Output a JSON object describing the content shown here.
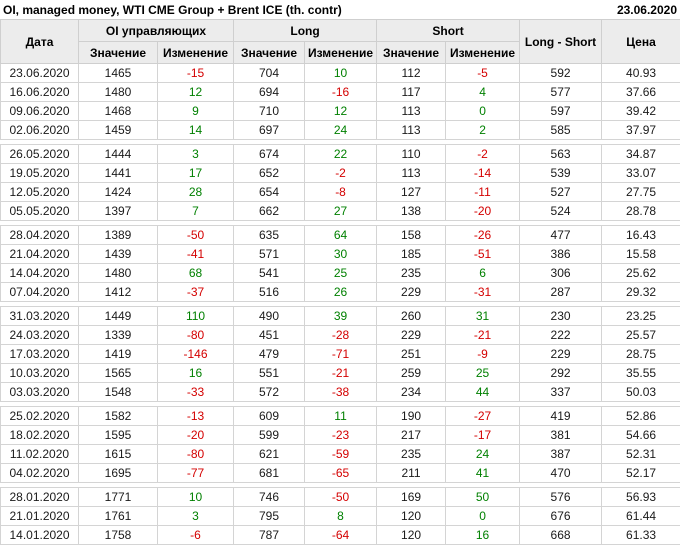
{
  "title": "OI, managed money, WTI CME Group + Brent ICE (th. contr)",
  "report_date": "23.06.2020",
  "colors": {
    "positive_change": "#008000",
    "negative_change": "#d40000",
    "header_background": "#ececec",
    "grid_border": "#d4d4d4"
  },
  "table": {
    "col_groups": [
      {
        "label": "Дата",
        "rowspan": 2
      },
      {
        "label": "OI управляющих",
        "colspan": 2
      },
      {
        "label": "Long",
        "colspan": 2
      },
      {
        "label": "Short",
        "colspan": 2
      },
      {
        "label": "Long - Short",
        "rowspan": 2
      },
      {
        "label": "Цена",
        "rowspan": 2
      }
    ],
    "sub_headers": [
      "Значение",
      "Изменение",
      "Значение",
      "Изменение",
      "Значение",
      "Изменение"
    ],
    "rows": [
      {
        "date": "23.06.2020",
        "oi": "1465",
        "oi_change": "-15",
        "long": "704",
        "long_change": "10",
        "short": "112",
        "short_change": "-5",
        "long_short": "592",
        "price": "40.93",
        "month_start": false
      },
      {
        "date": "16.06.2020",
        "oi": "1480",
        "oi_change": "12",
        "long": "694",
        "long_change": "-16",
        "short": "117",
        "short_change": "4",
        "long_short": "577",
        "price": "37.66",
        "month_start": false
      },
      {
        "date": "09.06.2020",
        "oi": "1468",
        "oi_change": "9",
        "long": "710",
        "long_change": "12",
        "short": "113",
        "short_change": "0",
        "long_short": "597",
        "price": "39.42",
        "month_start": false
      },
      {
        "date": "02.06.2020",
        "oi": "1459",
        "oi_change": "14",
        "long": "697",
        "long_change": "24",
        "short": "113",
        "short_change": "2",
        "long_short": "585",
        "price": "37.97",
        "month_start": false
      },
      {
        "date": "26.05.2020",
        "oi": "1444",
        "oi_change": "3",
        "long": "674",
        "long_change": "22",
        "short": "110",
        "short_change": "-2",
        "long_short": "563",
        "price": "34.87",
        "month_start": true
      },
      {
        "date": "19.05.2020",
        "oi": "1441",
        "oi_change": "17",
        "long": "652",
        "long_change": "-2",
        "short": "113",
        "short_change": "-14",
        "long_short": "539",
        "price": "33.07",
        "month_start": false
      },
      {
        "date": "12.05.2020",
        "oi": "1424",
        "oi_change": "28",
        "long": "654",
        "long_change": "-8",
        "short": "127",
        "short_change": "-11",
        "long_short": "527",
        "price": "27.75",
        "month_start": false
      },
      {
        "date": "05.05.2020",
        "oi": "1397",
        "oi_change": "7",
        "long": "662",
        "long_change": "27",
        "short": "138",
        "short_change": "-20",
        "long_short": "524",
        "price": "28.78",
        "month_start": false
      },
      {
        "date": "28.04.2020",
        "oi": "1389",
        "oi_change": "-50",
        "long": "635",
        "long_change": "64",
        "short": "158",
        "short_change": "-26",
        "long_short": "477",
        "price": "16.43",
        "month_start": true
      },
      {
        "date": "21.04.2020",
        "oi": "1439",
        "oi_change": "-41",
        "long": "571",
        "long_change": "30",
        "short": "185",
        "short_change": "-51",
        "long_short": "386",
        "price": "15.58",
        "month_start": false
      },
      {
        "date": "14.04.2020",
        "oi": "1480",
        "oi_change": "68",
        "long": "541",
        "long_change": "25",
        "short": "235",
        "short_change": "6",
        "long_short": "306",
        "price": "25.62",
        "month_start": false
      },
      {
        "date": "07.04.2020",
        "oi": "1412",
        "oi_change": "-37",
        "long": "516",
        "long_change": "26",
        "short": "229",
        "short_change": "-31",
        "long_short": "287",
        "price": "29.32",
        "month_start": false
      },
      {
        "date": "31.03.2020",
        "oi": "1449",
        "oi_change": "110",
        "long": "490",
        "long_change": "39",
        "short": "260",
        "short_change": "31",
        "long_short": "230",
        "price": "23.25",
        "month_start": true
      },
      {
        "date": "24.03.2020",
        "oi": "1339",
        "oi_change": "-80",
        "long": "451",
        "long_change": "-28",
        "short": "229",
        "short_change": "-21",
        "long_short": "222",
        "price": "25.57",
        "month_start": false
      },
      {
        "date": "17.03.2020",
        "oi": "1419",
        "oi_change": "-146",
        "long": "479",
        "long_change": "-71",
        "short": "251",
        "short_change": "-9",
        "long_short": "229",
        "price": "28.75",
        "month_start": false
      },
      {
        "date": "10.03.2020",
        "oi": "1565",
        "oi_change": "16",
        "long": "551",
        "long_change": "-21",
        "short": "259",
        "short_change": "25",
        "long_short": "292",
        "price": "35.55",
        "month_start": false
      },
      {
        "date": "03.03.2020",
        "oi": "1548",
        "oi_change": "-33",
        "long": "572",
        "long_change": "-38",
        "short": "234",
        "short_change": "44",
        "long_short": "337",
        "price": "50.03",
        "month_start": false
      },
      {
        "date": "25.02.2020",
        "oi": "1582",
        "oi_change": "-13",
        "long": "609",
        "long_change": "11",
        "short": "190",
        "short_change": "-27",
        "long_short": "419",
        "price": "52.86",
        "month_start": true
      },
      {
        "date": "18.02.2020",
        "oi": "1595",
        "oi_change": "-20",
        "long": "599",
        "long_change": "-23",
        "short": "217",
        "short_change": "-17",
        "long_short": "381",
        "price": "54.66",
        "month_start": false
      },
      {
        "date": "11.02.2020",
        "oi": "1615",
        "oi_change": "-80",
        "long": "621",
        "long_change": "-59",
        "short": "235",
        "short_change": "24",
        "long_short": "387",
        "price": "52.31",
        "month_start": false
      },
      {
        "date": "04.02.2020",
        "oi": "1695",
        "oi_change": "-77",
        "long": "681",
        "long_change": "-65",
        "short": "211",
        "short_change": "41",
        "long_short": "470",
        "price": "52.17",
        "month_start": false
      },
      {
        "date": "28.01.2020",
        "oi": "1771",
        "oi_change": "10",
        "long": "746",
        "long_change": "-50",
        "short": "169",
        "short_change": "50",
        "long_short": "576",
        "price": "56.93",
        "month_start": true
      },
      {
        "date": "21.01.2020",
        "oi": "1761",
        "oi_change": "3",
        "long": "795",
        "long_change": "8",
        "short": "120",
        "short_change": "0",
        "long_short": "676",
        "price": "61.44",
        "month_start": false
      },
      {
        "date": "14.01.2020",
        "oi": "1758",
        "oi_change": "-6",
        "long": "787",
        "long_change": "-64",
        "short": "120",
        "short_change": "16",
        "long_short": "668",
        "price": "61.33",
        "month_start": false
      }
    ]
  }
}
